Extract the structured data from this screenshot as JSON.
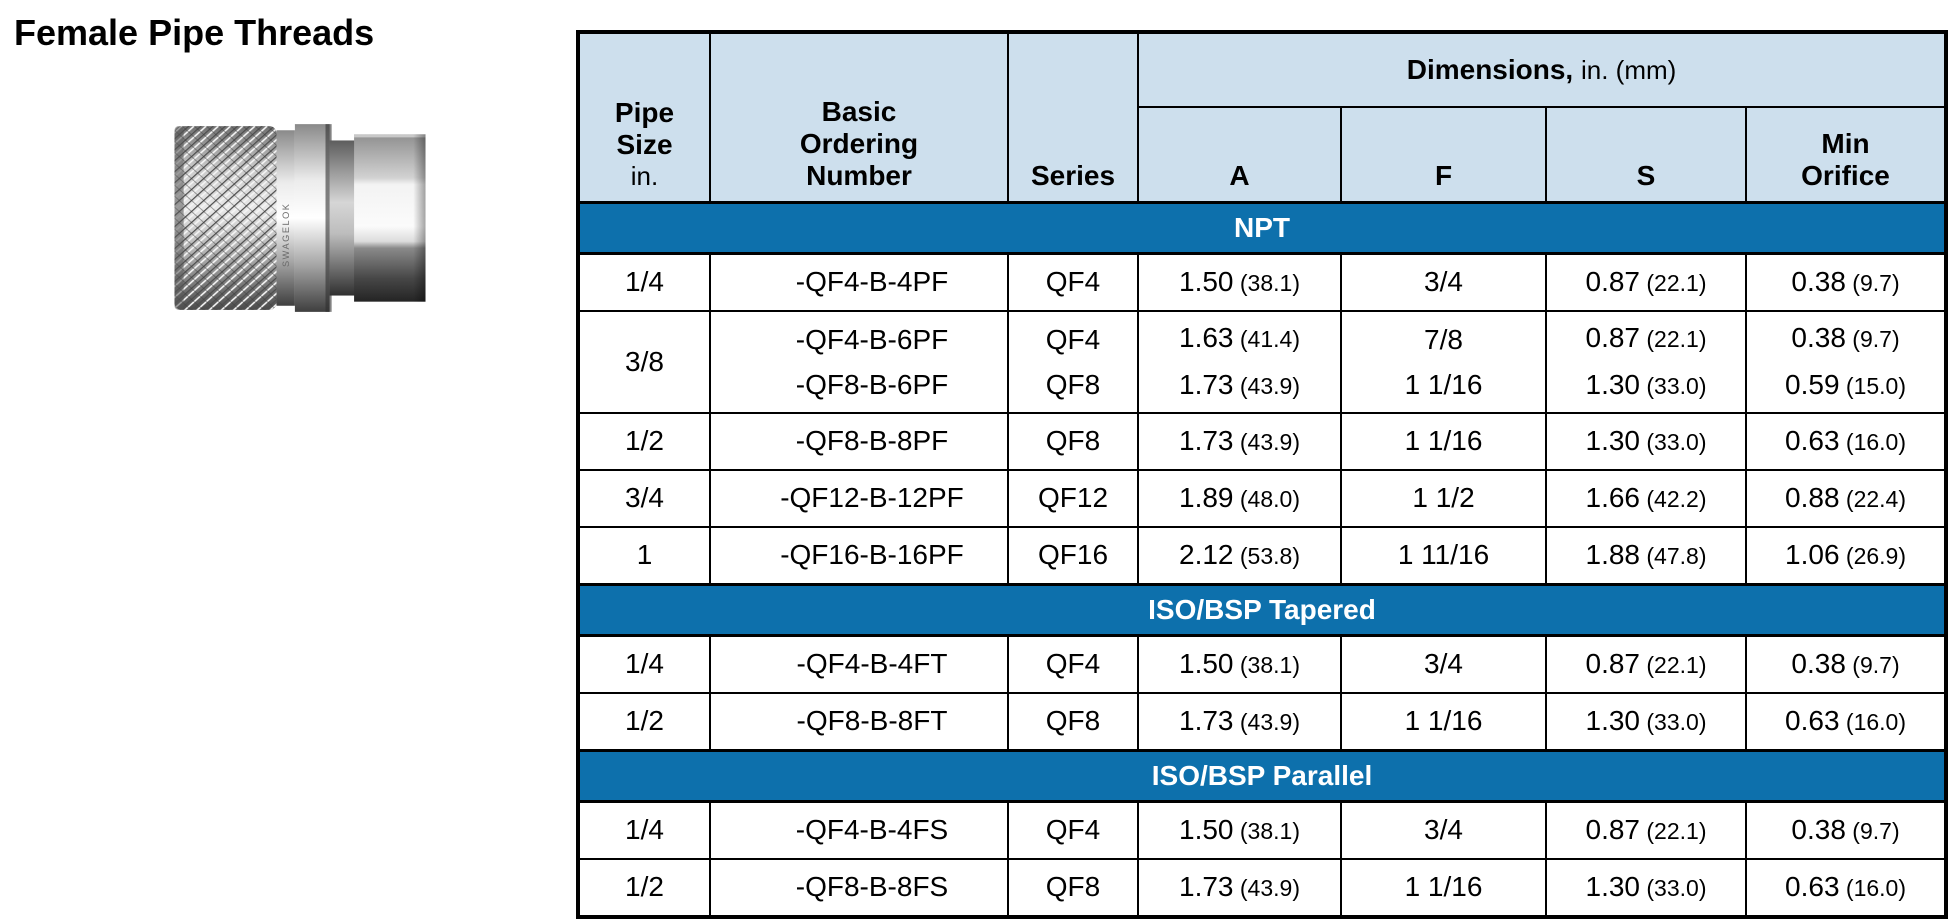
{
  "page": {
    "title": "Female Pipe Threads"
  },
  "product_image": {
    "description": "stainless steel quick-connect body with female pipe thread, knurled sleeve and hex nut",
    "engraving": "SWAGELOK"
  },
  "colors": {
    "header_bg": "#cddfed",
    "band_bg": "#0d70ac",
    "ordering_bg": "#e3e3e3",
    "border": "#000000"
  },
  "table": {
    "header": {
      "pipe_size": "Pipe Size",
      "pipe_size_unit": "in.",
      "ordering": "Basic Ordering Number",
      "series": "Series",
      "dimensions": "Dimensions,",
      "dimensions_unit": "in. (mm)",
      "dim_columns": [
        "A",
        "F",
        "S",
        "Min Orifice"
      ]
    },
    "sections": [
      {
        "name": "NPT",
        "rows": [
          {
            "pipe_size": "1/4",
            "ordering": [
              "-QF4-B-4PF"
            ],
            "series": [
              "QF4"
            ],
            "A": [
              "1.50 (38.1)"
            ],
            "F": [
              "3/4"
            ],
            "S": [
              "0.87 (22.1)"
            ],
            "min_orifice": [
              "0.38 (9.7)"
            ]
          },
          {
            "pipe_size": "3/8",
            "ordering": [
              "-QF4-B-6PF",
              "-QF8-B-6PF"
            ],
            "series": [
              "QF4",
              "QF8"
            ],
            "A": [
              "1.63 (41.4)",
              "1.73 (43.9)"
            ],
            "F": [
              "7/8",
              "1 1/16"
            ],
            "S": [
              "0.87 (22.1)",
              "1.30 (33.0)"
            ],
            "min_orifice": [
              "0.38 (9.7)",
              "0.59 (15.0)"
            ]
          },
          {
            "pipe_size": "1/2",
            "ordering": [
              "-QF8-B-8PF"
            ],
            "series": [
              "QF8"
            ],
            "A": [
              "1.73 (43.9)"
            ],
            "F": [
              "1 1/16"
            ],
            "S": [
              "1.30 (33.0)"
            ],
            "min_orifice": [
              "0.63 (16.0)"
            ]
          },
          {
            "pipe_size": "3/4",
            "ordering": [
              "-QF12-B-12PF"
            ],
            "series": [
              "QF12"
            ],
            "A": [
              "1.89 (48.0)"
            ],
            "F": [
              "1 1/2"
            ],
            "S": [
              "1.66 (42.2)"
            ],
            "min_orifice": [
              "0.88 (22.4)"
            ]
          },
          {
            "pipe_size": "1",
            "ordering": [
              "-QF16-B-16PF"
            ],
            "series": [
              "QF16"
            ],
            "A": [
              "2.12 (53.8)"
            ],
            "F": [
              "1 11/16"
            ],
            "S": [
              "1.88 (47.8)"
            ],
            "min_orifice": [
              "1.06 (26.9)"
            ]
          }
        ]
      },
      {
        "name": "ISO/BSP Tapered",
        "rows": [
          {
            "pipe_size": "1/4",
            "ordering": [
              "-QF4-B-4FT"
            ],
            "series": [
              "QF4"
            ],
            "A": [
              "1.50 (38.1)"
            ],
            "F": [
              "3/4"
            ],
            "S": [
              "0.87 (22.1)"
            ],
            "min_orifice": [
              "0.38 (9.7)"
            ]
          },
          {
            "pipe_size": "1/2",
            "ordering": [
              "-QF8-B-8FT"
            ],
            "series": [
              "QF8"
            ],
            "A": [
              "1.73 (43.9)"
            ],
            "F": [
              "1 1/16"
            ],
            "S": [
              "1.30 (33.0)"
            ],
            "min_orifice": [
              "0.63 (16.0)"
            ]
          }
        ]
      },
      {
        "name": "ISO/BSP Parallel",
        "rows": [
          {
            "pipe_size": "1/4",
            "ordering": [
              "-QF4-B-4FS"
            ],
            "series": [
              "QF4"
            ],
            "A": [
              "1.50 (38.1)"
            ],
            "F": [
              "3/4"
            ],
            "S": [
              "0.87 (22.1)"
            ],
            "min_orifice": [
              "0.38 (9.7)"
            ]
          },
          {
            "pipe_size": "1/2",
            "ordering": [
              "-QF8-B-8FS"
            ],
            "series": [
              "QF8"
            ],
            "A": [
              "1.73 (43.9)"
            ],
            "F": [
              "1 1/16"
            ],
            "S": [
              "1.30 (33.0)"
            ],
            "min_orifice": [
              "0.63 (16.0)"
            ]
          }
        ]
      }
    ]
  }
}
